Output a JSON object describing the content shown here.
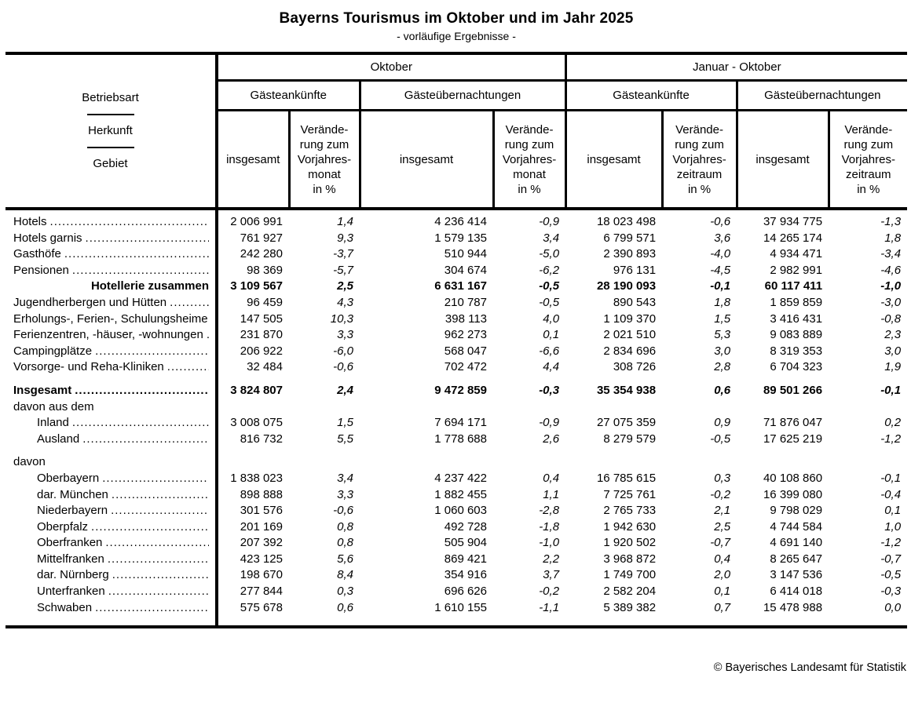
{
  "page": {
    "title": "Bayerns Tourismus im Oktober und im Jahr 2025",
    "subtitle": "- vorläufige Ergebnisse -",
    "copyright": "© Bayerisches Landesamt für Statistik"
  },
  "table": {
    "stub_header": [
      "Betriebsart",
      "Herkunft",
      "Gebiet"
    ],
    "groups": [
      {
        "label": "Oktober",
        "subs": [
          {
            "label": "Gästeankünfte",
            "cols": [
              "insgesamt",
              "Verände-\nrung zum\nVorjahres-\nmonat\nin %"
            ]
          },
          {
            "label": "Gästeübernachtungen",
            "cols": [
              "insgesamt",
              "Verände-\nrung zum\nVorjahres-\nmonat\nin %"
            ]
          }
        ]
      },
      {
        "label": "Januar - Oktober",
        "subs": [
          {
            "label": "Gästeankünfte",
            "cols": [
              "insgesamt",
              "Verände-\nrung zum\nVorjahres-\nzeitraum\nin %"
            ]
          },
          {
            "label": "Gästeübernachtungen",
            "cols": [
              "insgesamt",
              "Verände-\nrung zum\nVorjahres-\nzeitraum\nin %"
            ]
          }
        ]
      }
    ],
    "rows": [
      {
        "label": "Hotels",
        "variant": "normal",
        "dots": true,
        "values": [
          "2 006 991",
          "1,4",
          "4 236 414",
          "-0,9",
          "18 023 498",
          "-0,6",
          "37 934 775",
          "-1,3"
        ]
      },
      {
        "label": "Hotels garnis",
        "variant": "normal",
        "dots": true,
        "values": [
          "761 927",
          "9,3",
          "1 579 135",
          "3,4",
          "6 799 571",
          "3,6",
          "14 265 174",
          "1,8"
        ]
      },
      {
        "label": "Gasthöfe",
        "variant": "normal",
        "dots": true,
        "values": [
          "242 280",
          "-3,7",
          "510 944",
          "-5,0",
          "2 390 893",
          "-4,0",
          "4 934 471",
          "-3,4"
        ]
      },
      {
        "label": "Pensionen",
        "variant": "normal",
        "dots": true,
        "values": [
          "98 369",
          "-5,7",
          "304 674",
          "-6,2",
          "976 131",
          "-4,5",
          "2 982 991",
          "-4,6"
        ]
      },
      {
        "label": "Hotellerie zusammen",
        "variant": "subtotal",
        "dots": false,
        "values": [
          "3 109 567",
          "2,5",
          "6 631 167",
          "-0,5",
          "28 190 093",
          "-0,1",
          "60 117 411",
          "-1,0"
        ]
      },
      {
        "label": "Jugendherbergen und Hütten",
        "variant": "normal",
        "dots": true,
        "values": [
          "96 459",
          "4,3",
          "210 787",
          "-0,5",
          "890 543",
          "1,8",
          "1 859 859",
          "-3,0"
        ]
      },
      {
        "label": "Erholungs-, Ferien-, Schulungsheime",
        "variant": "normal",
        "dots": true,
        "values": [
          "147 505",
          "10,3",
          "398 113",
          "4,0",
          "1 109 370",
          "1,5",
          "3 416 431",
          "-0,8"
        ]
      },
      {
        "label": "Ferienzentren, -häuser, -wohnungen",
        "variant": "normal",
        "dots": true,
        "values": [
          "231 870",
          "3,3",
          "962 273",
          "0,1",
          "2 021 510",
          "5,3",
          "9 083 889",
          "2,3"
        ]
      },
      {
        "label": "Campingplätze",
        "variant": "normal",
        "dots": true,
        "values": [
          "206 922",
          "-6,0",
          "568 047",
          "-6,6",
          "2 834 696",
          "3,0",
          "8 319 353",
          "3,0"
        ]
      },
      {
        "label": "Vorsorge- und Reha-Kliniken",
        "variant": "normal",
        "dots": true,
        "values": [
          "32 484",
          "-0,6",
          "702 472",
          "4,4",
          "308 726",
          "2,8",
          "6 704 323",
          "1,9"
        ]
      },
      {
        "label": "Insgesamt",
        "variant": "total",
        "gap": true,
        "dots": true,
        "values": [
          "3 824 807",
          "2,4",
          "9 472 859",
          "-0,3",
          "35 354 938",
          "0,6",
          "89 501 266",
          "-0,1"
        ]
      },
      {
        "label": "davon aus dem",
        "variant": "section",
        "dots": false,
        "values": [
          "",
          "",
          "",
          "",
          "",
          "",
          "",
          ""
        ]
      },
      {
        "label": "Inland",
        "variant": "indent",
        "dots": true,
        "values": [
          "3 008 075",
          "1,5",
          "7 694 171",
          "-0,9",
          "27 075 359",
          "0,9",
          "71 876 047",
          "0,2"
        ]
      },
      {
        "label": "Ausland",
        "variant": "indent",
        "dots": true,
        "values": [
          "816 732",
          "5,5",
          "1 778 688",
          "2,6",
          "8 279 579",
          "-0,5",
          "17 625 219",
          "-1,2"
        ]
      },
      {
        "label": "davon",
        "variant": "section",
        "gap": true,
        "dots": false,
        "values": [
          "",
          "",
          "",
          "",
          "",
          "",
          "",
          ""
        ]
      },
      {
        "label": "Oberbayern",
        "variant": "indent",
        "dots": true,
        "values": [
          "1 838 023",
          "3,4",
          "4 237 422",
          "0,4",
          "16 785 615",
          "0,3",
          "40 108 860",
          "-0,1"
        ]
      },
      {
        "label": "dar. München",
        "variant": "indent",
        "dots": true,
        "values": [
          "898 888",
          "3,3",
          "1 882 455",
          "1,1",
          "7 725 761",
          "-0,2",
          "16 399 080",
          "-0,4"
        ]
      },
      {
        "label": "Niederbayern",
        "variant": "indent",
        "dots": true,
        "values": [
          "301 576",
          "-0,6",
          "1 060 603",
          "-2,8",
          "2 765 733",
          "2,1",
          "9 798 029",
          "0,1"
        ]
      },
      {
        "label": "Oberpfalz",
        "variant": "indent",
        "dots": true,
        "values": [
          "201 169",
          "0,8",
          "492 728",
          "-1,8",
          "1 942 630",
          "2,5",
          "4 744 584",
          "1,0"
        ]
      },
      {
        "label": "Oberfranken",
        "variant": "indent",
        "dots": true,
        "values": [
          "207 392",
          "0,8",
          "505 904",
          "-1,0",
          "1 920 502",
          "-0,7",
          "4 691 140",
          "-1,2"
        ]
      },
      {
        "label": "Mittelfranken",
        "variant": "indent",
        "dots": true,
        "values": [
          "423 125",
          "5,6",
          "869 421",
          "2,2",
          "3 968 872",
          "0,4",
          "8 265 647",
          "-0,7"
        ]
      },
      {
        "label": "dar. Nürnberg",
        "variant": "indent",
        "dots": true,
        "values": [
          "198 670",
          "8,4",
          "354 916",
          "3,7",
          "1 749 700",
          "2,0",
          "3 147 536",
          "-0,5"
        ]
      },
      {
        "label": "Unterfranken",
        "variant": "indent",
        "dots": true,
        "values": [
          "277 844",
          "0,3",
          "696 626",
          "-0,2",
          "2 582 204",
          "0,1",
          "6 414 018",
          "-0,3"
        ]
      },
      {
        "label": "Schwaben",
        "variant": "indent",
        "dots": true,
        "values": [
          "575 678",
          "0,6",
          "1 610 155",
          "-1,1",
          "5 389 382",
          "0,7",
          "15 478 988",
          "0,0"
        ]
      }
    ]
  }
}
